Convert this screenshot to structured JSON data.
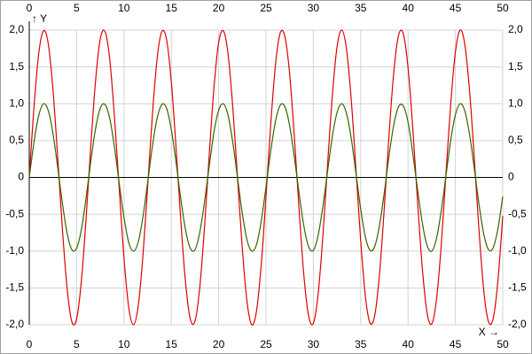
{
  "chart_data": {
    "type": "line",
    "x_label": "X →",
    "y_label": "↑ Y",
    "x": [
      0,
      0.5,
      1,
      1.5,
      2,
      2.5,
      3,
      3.5,
      4,
      4.5,
      5,
      5.5,
      6,
      6.5,
      7,
      7.5,
      8,
      8.5,
      9,
      9.5,
      10,
      10.5,
      11,
      11.5,
      12,
      12.5,
      13,
      13.5,
      14,
      14.5,
      15,
      15.5,
      16,
      16.5,
      17,
      17.5,
      18,
      18.5,
      19,
      19.5,
      20,
      20.5,
      21,
      21.5,
      22,
      22.5,
      23,
      23.5,
      24,
      24.5,
      25,
      25.5,
      26,
      26.5,
      27,
      27.5,
      28,
      28.5,
      29,
      29.5,
      30,
      30.5,
      31,
      31.5,
      32,
      32.5,
      33,
      33.5,
      34,
      34.5,
      35,
      35.5,
      36,
      36.5,
      37,
      37.5,
      38,
      38.5,
      39,
      39.5,
      40,
      40.5,
      41,
      41.5,
      42,
      42.5,
      43,
      43.5,
      44,
      44.5,
      45,
      45.5,
      46,
      46.5,
      47,
      47.5,
      48,
      48.5,
      49,
      49.5,
      50
    ],
    "series": [
      {
        "color": "#e00000",
        "values": [
          0,
          0.96,
          1.68,
          1.99,
          1.82,
          1.2,
          0.28,
          -0.7,
          -1.51,
          -1.96,
          -1.92,
          -1.41,
          -0.56,
          0.43,
          1.31,
          1.88,
          1.98,
          1.6,
          0.82,
          -0.15,
          -1.09,
          -1.76,
          -2,
          -1.75,
          -1.07,
          -0.13,
          0.84,
          1.61,
          1.98,
          1.87,
          1.3,
          0.41,
          -0.58,
          -1.42,
          -1.92,
          -1.95,
          -1.5,
          -0.69,
          0.3,
          1.21,
          1.83,
          1.99,
          1.67,
          0.94,
          -0.02,
          -0.97,
          -1.69,
          -2,
          -1.81,
          -1.18,
          -0.26,
          0.72,
          1.53,
          1.96,
          1.91,
          1.4,
          0.54,
          -0.45,
          -1.33,
          -1.88,
          -1.98,
          -1.59,
          -0.81,
          0.17,
          1.1,
          1.77,
          2,
          1.74,
          1.06,
          0.11,
          -0.86,
          -1.62,
          -1.98,
          -1.86,
          -1.29,
          -0.4,
          0.59,
          1.44,
          1.93,
          1.95,
          1.49,
          0.67,
          -0.32,
          -1.22,
          -1.83,
          -1.99,
          -1.66,
          -0.93,
          0.04,
          0.99,
          1.7,
          2,
          1.8,
          1.17,
          0.25,
          -0.73,
          -1.54,
          -1.96,
          -1.91,
          -1.39,
          -0.52
        ]
      },
      {
        "color": "#336600",
        "values": [
          0,
          0.48,
          0.84,
          1,
          0.91,
          0.6,
          0.14,
          -0.35,
          -0.76,
          -0.98,
          -0.96,
          -0.71,
          -0.28,
          0.22,
          0.66,
          0.94,
          0.99,
          0.8,
          0.41,
          -0.08,
          -0.54,
          -0.88,
          -1,
          -0.88,
          -0.54,
          -0.07,
          0.42,
          0.8,
          0.99,
          0.94,
          0.65,
          0.21,
          -0.29,
          -0.71,
          -0.96,
          -0.98,
          -0.75,
          -0.34,
          0.15,
          0.61,
          0.91,
          1,
          0.84,
          0.47,
          -0.01,
          -0.49,
          -0.85,
          -1,
          -0.91,
          -0.59,
          -0.13,
          0.36,
          0.76,
          0.98,
          0.96,
          0.7,
          0.27,
          -0.22,
          -0.66,
          -0.94,
          -0.99,
          -0.79,
          -0.4,
          0.08,
          0.55,
          0.88,
          1,
          0.87,
          0.53,
          0.06,
          -0.43,
          -0.81,
          -0.99,
          -0.93,
          -0.64,
          -0.2,
          0.3,
          0.72,
          0.96,
          0.97,
          0.75,
          0.33,
          -0.16,
          -0.61,
          -0.92,
          -1,
          -0.83,
          -0.46,
          0.02,
          0.5,
          0.85,
          1,
          0.9,
          0.58,
          0.12,
          -0.37,
          -0.77,
          -0.98,
          -0.95,
          -0.69,
          -0.26
        ]
      }
    ],
    "xlim": [
      0,
      50
    ],
    "xticks": [
      0,
      5,
      10,
      15,
      20,
      25,
      30,
      35,
      40,
      45,
      50
    ],
    "ylim": [
      -2,
      2
    ],
    "yticks": [
      {
        "value": -2,
        "label": "-2,0"
      },
      {
        "value": -1.5,
        "label": "-1,5"
      },
      {
        "value": -1,
        "label": "-1,0"
      },
      {
        "value": -0.5,
        "label": "-0,5"
      },
      0,
      {
        "value": 0.5,
        "label": "0,5"
      },
      {
        "value": 1,
        "label": "1,0"
      },
      {
        "value": 1.5,
        "label": "1,5"
      },
      {
        "value": 2,
        "label": "2,0"
      }
    ],
    "grid": true
  }
}
